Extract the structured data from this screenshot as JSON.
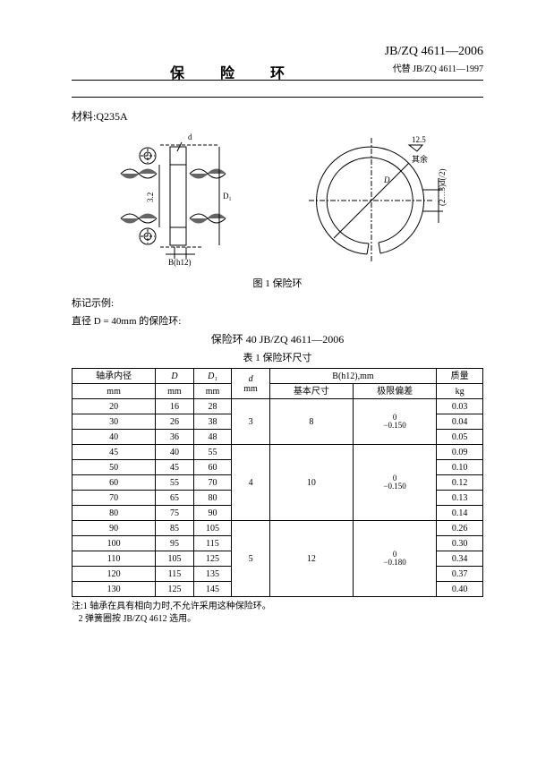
{
  "header": {
    "title": "保  险  环",
    "standard_code": "JB/ZQ 4611—2006",
    "replaces": "代替 JB/ZQ 4611—1997"
  },
  "material_label": "材料:",
  "material_value": "Q235A",
  "figure": {
    "caption": "图 1  保险环",
    "dim_d_small": "d",
    "dim_D1": "D₁",
    "dim_3_2": "3.2",
    "dim_B": "B(h12)",
    "dim_12_5": "12.5",
    "dim_rest": "其余",
    "dim_thick": "(2…3)d(/2)"
  },
  "marking": {
    "label": "标记示例:",
    "example": "直径 D = 40mm 的保险环:",
    "designation": "保险环  40  JB/ZQ 4611—2006"
  },
  "table": {
    "caption": "表 1  保险环尺寸",
    "headers": {
      "shaft_id": "轴承内径",
      "D": "D",
      "D1": "D₁",
      "d": "d",
      "Bh12": "B(h12),mm",
      "basic": "基本尺寸",
      "tol": "极限偏差",
      "mass": "质量",
      "mm": "mm",
      "kg": "kg"
    },
    "rows": [
      {
        "shaft": "20",
        "D": "16",
        "D1": "28",
        "mass": "0.03"
      },
      {
        "shaft": "30",
        "D": "26",
        "D1": "38",
        "mass": "0.04"
      },
      {
        "shaft": "40",
        "D": "36",
        "D1": "48",
        "mass": "0.05"
      },
      {
        "shaft": "45",
        "D": "40",
        "D1": "55",
        "mass": "0.09"
      },
      {
        "shaft": "50",
        "D": "45",
        "D1": "60",
        "mass": "0.10"
      },
      {
        "shaft": "60",
        "D": "55",
        "D1": "70",
        "mass": "0.12"
      },
      {
        "shaft": "70",
        "D": "65",
        "D1": "80",
        "mass": "0.13"
      },
      {
        "shaft": "80",
        "D": "75",
        "D1": "90",
        "mass": "0.14"
      },
      {
        "shaft": "90",
        "D": "85",
        "D1": "105",
        "mass": "0.26"
      },
      {
        "shaft": "100",
        "D": "95",
        "D1": "115",
        "mass": "0.30"
      },
      {
        "shaft": "110",
        "D": "105",
        "D1": "125",
        "mass": "0.34"
      },
      {
        "shaft": "120",
        "D": "115",
        "D1": "135",
        "mass": "0.37"
      },
      {
        "shaft": "130",
        "D": "125",
        "D1": "145",
        "mass": "0.40"
      }
    ],
    "groups": [
      {
        "d": "3",
        "B": "8",
        "tol_top": "0",
        "tol_bot": "−0.150"
      },
      {
        "d": "4",
        "B": "10",
        "tol_top": "0",
        "tol_bot": "−0.150"
      },
      {
        "d": "5",
        "B": "12",
        "tol_top": "0",
        "tol_bot": "−0.180"
      }
    ]
  },
  "notes": {
    "prefix": "注:",
    "n1": "1  轴承在具有相向力时,不允许采用这种保险环。",
    "n2": "2  弹簧圈按 JB/ZQ 4612 选用。"
  }
}
